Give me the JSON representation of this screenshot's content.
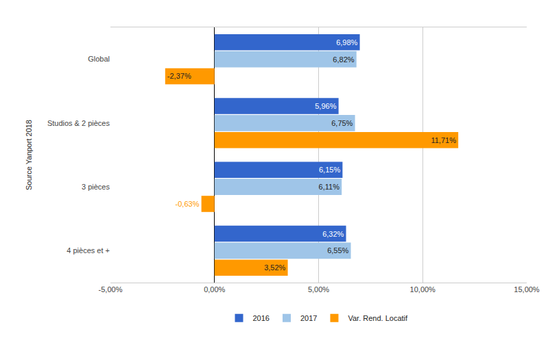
{
  "chart_data": {
    "type": "bar",
    "orientation": "horizontal",
    "y_label": "Source Yanport 2018",
    "categories": [
      "Global",
      "Studios & 2 pièces",
      "3 pièces",
      "4 pièces et +"
    ],
    "series": [
      {
        "name": "2016",
        "color": "#3366cc",
        "values": [
          6.98,
          5.96,
          6.15,
          6.32
        ],
        "value_labels": [
          "6,98%",
          "5,96%",
          "6,15%",
          "6,32%"
        ]
      },
      {
        "name": "2017",
        "color": "#9fc5e8",
        "values": [
          6.82,
          6.75,
          6.11,
          6.55
        ],
        "value_labels": [
          "6,82%",
          "6,75%",
          "6,11%",
          "6,55%"
        ]
      },
      {
        "name": "Var. Rend. Locatif",
        "color": "#ff9900",
        "values": [
          -2.37,
          11.71,
          -0.63,
          3.52
        ],
        "value_labels": [
          "-2,37%",
          "11,71%",
          "-0,63%",
          "3,52%"
        ]
      }
    ],
    "xlim": [
      -5,
      15
    ],
    "xticks": [
      {
        "value": -5,
        "label": "-5,00%"
      },
      {
        "value": 0,
        "label": "0,00%"
      },
      {
        "value": 5,
        "label": "5,00%"
      },
      {
        "value": 10,
        "label": "10,00%"
      },
      {
        "value": 15,
        "label": "15,00%"
      }
    ],
    "grid": true,
    "legend": "bottom",
    "data_labels": true
  }
}
